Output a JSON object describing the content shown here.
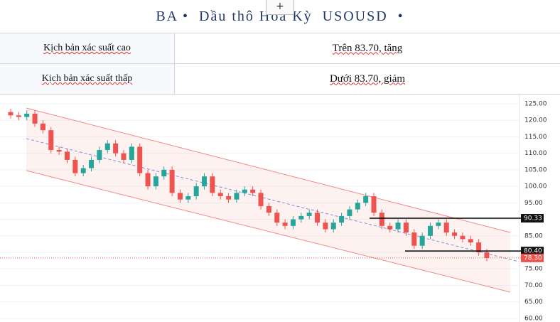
{
  "header": {
    "title": "BA •  Dầu thô Hoa Kỳ  USOUSD  •"
  },
  "table": {
    "rows": [
      [
        "Kịch bản xác suất cao",
        "Trên 83.70, tăng"
      ],
      [
        "Kịch bản xác suất thấp",
        "Dưới 83.70, giảm"
      ]
    ]
  },
  "chart_data": {
    "type": "candlestick",
    "open": [
      122.5,
      121.5,
      121,
      122,
      119,
      117,
      111,
      110.5,
      108,
      104,
      105.5,
      108,
      111,
      113,
      110,
      108,
      112,
      104,
      100,
      103,
      105,
      98,
      96,
      97,
      100,
      103,
      98,
      97,
      96,
      98,
      99,
      98,
      94,
      92,
      89,
      88,
      90,
      91,
      92,
      89,
      87,
      89,
      91,
      93,
      95,
      97,
      92,
      88,
      87,
      89,
      86,
      82,
      85,
      88,
      89,
      86,
      85,
      84,
      83,
      80
    ],
    "high": [
      123.5,
      122.5,
      123,
      123,
      120,
      118,
      112,
      111.5,
      109,
      106.5,
      109,
      112,
      114,
      114,
      111,
      113,
      113,
      105,
      104,
      106,
      106,
      99,
      98,
      101,
      104,
      104,
      99,
      98,
      99,
      100,
      100,
      99,
      95,
      93,
      90,
      91,
      92,
      93,
      93,
      90,
      90,
      92,
      94,
      96,
      98,
      98,
      93,
      89,
      90,
      90,
      87,
      86,
      89,
      90,
      90,
      87,
      86,
      85,
      84,
      81
    ],
    "low": [
      120.5,
      120,
      120,
      118,
      116,
      110,
      109.5,
      107,
      103,
      103,
      104.5,
      107,
      110,
      109,
      107,
      107,
      103,
      99,
      99,
      102,
      97,
      95,
      95,
      96,
      99,
      97,
      96,
      95,
      95,
      97,
      97,
      93,
      91,
      88,
      87,
      87,
      89,
      90,
      88,
      86,
      86,
      88,
      90,
      92,
      94,
      91,
      87,
      86,
      86,
      85,
      81,
      81,
      84,
      87,
      85,
      84,
      83,
      82,
      79,
      77.3
    ],
    "close": [
      121.5,
      121,
      122,
      119,
      117,
      111,
      110.5,
      108,
      104,
      105.5,
      108,
      111,
      113,
      110,
      108,
      112,
      104,
      100,
      103,
      105,
      98,
      96,
      97,
      100,
      103,
      98,
      97,
      96,
      98,
      99,
      98,
      94,
      92,
      89,
      88,
      90,
      91,
      92,
      89,
      87,
      89,
      91,
      93,
      95,
      97,
      92,
      88,
      87,
      89,
      86,
      82,
      85,
      88,
      89,
      86,
      85,
      84,
      83,
      80,
      78.3
    ],
    "up_color": "#26a69a",
    "down_color": "#ef5350",
    "levels": [
      90.33,
      {
        "value": 80.4,
        "label": "80.40"
      }
    ],
    "last_price": {
      "value": 78.3,
      "label": "78.30"
    },
    "ylim": [
      58.9,
      127.8
    ],
    "yticks": [
      {
        "value": 60,
        "label": "60.00"
      },
      {
        "value": 65,
        "label": "65.00"
      },
      {
        "value": 70,
        "label": "70.00"
      },
      {
        "value": 75,
        "label": "75.00"
      },
      {
        "value": 80,
        "label": "80.00"
      },
      {
        "value": 85,
        "label": "85.00"
      },
      {
        "value": 90,
        "label": "90.00"
      },
      {
        "value": 95,
        "label": "95.00"
      },
      {
        "value": 100,
        "label": "100.00"
      },
      {
        "value": 105,
        "label": "105.00"
      },
      {
        "value": 110,
        "label": "110.00"
      },
      {
        "value": 115,
        "label": "115.00"
      },
      {
        "value": 120,
        "label": "120.00"
      },
      {
        "value": 125,
        "label": "125.00"
      }
    ],
    "grid": true
  }
}
